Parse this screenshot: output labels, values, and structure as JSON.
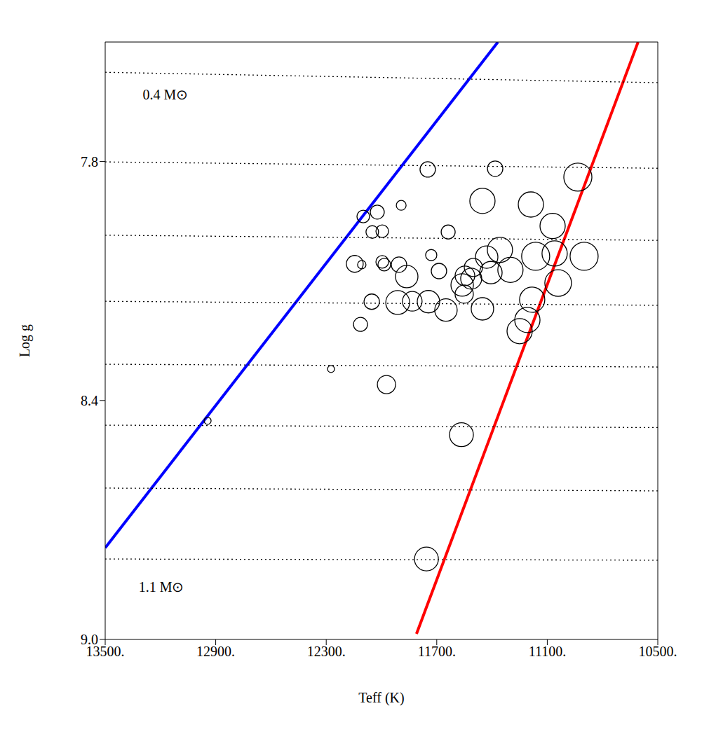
{
  "chart_data": {
    "type": "scatter",
    "x_label": "Teff (K)",
    "y_label": "Log g",
    "xlim": [
      13500,
      10500
    ],
    "ylim": [
      9.0,
      7.5
    ],
    "xticks": [
      {
        "value": 13500,
        "label": "13500."
      },
      {
        "value": 12900,
        "label": "12900."
      },
      {
        "value": 12300,
        "label": "12300."
      },
      {
        "value": 11700,
        "label": "11700."
      },
      {
        "value": 11100,
        "label": "11100."
      },
      {
        "value": 10500,
        "label": "10500."
      }
    ],
    "yticks": [
      7.8,
      8.4,
      {
        "value": 9,
        "label": "9.0"
      }
    ],
    "color": "#000000",
    "marker": "open_circle",
    "x": [
      12944,
      12274,
      11973,
      11749,
      11383,
      10934,
      12099,
      12023,
      11893,
      12050,
      11996,
      12145,
      12107,
      11996,
      11985,
      11905,
      12053,
      12114,
      11912,
      11833,
      11863,
      11745,
      11730,
      11688,
      11638,
      11650,
      11562,
      11547,
      11551,
      11513,
      11501,
      11452,
      11452,
      11429,
      11406,
      11357,
      11300,
      11189,
      11250,
      11208,
      11182,
      11163,
      11071,
      11060,
      11041,
      10900,
      11566,
      11756
    ],
    "y": [
      8.451,
      8.321,
      8.36,
      7.82,
      7.818,
      7.839,
      7.938,
      7.927,
      7.91,
      7.977,
      7.975,
      8.057,
      8.059,
      8.052,
      8.059,
      8.059,
      8.152,
      8.209,
      8.154,
      8.151,
      8.089,
      8.152,
      8.035,
      8.075,
      7.977,
      8.173,
      8.11,
      8.087,
      8.133,
      8.094,
      8.066,
      7.899,
      8.17,
      8.04,
      8.079,
      8.022,
      8.072,
      7.908,
      8.226,
      8.198,
      8.147,
      8.038,
      7.962,
      8.031,
      8.105,
      8.038,
      8.486,
      8.798
    ],
    "sizes": [
      5,
      5,
      13,
      11,
      11,
      20,
      9,
      10,
      7,
      9,
      9,
      12,
      6,
      9,
      9,
      11,
      11,
      10,
      17,
      14,
      16,
      16,
      8,
      11,
      10,
      16,
      16,
      14,
      13,
      15,
      13,
      18,
      16,
      16,
      16,
      18,
      18,
      18,
      18,
      18,
      18,
      20,
      18,
      18,
      19,
      20,
      17,
      17
    ],
    "lines": [
      {
        "color": "#0000ff",
        "line_style": "solid",
        "x": [
          13500,
          11368
        ],
        "y": [
          8.77,
          7.5
        ]
      },
      {
        "color": "#ff0000",
        "line_style": "solid",
        "x": [
          11810,
          10607
        ],
        "y": [
          8.986,
          7.5
        ]
      },
      {
        "color": "#000000",
        "line_style": "dotted",
        "x": [
          13500,
          10500
        ],
        "y": [
          7.576,
          7.602
        ]
      },
      {
        "color": "#000000",
        "line_style": "dotted",
        "x": [
          13500,
          10500
        ],
        "y": [
          7.801,
          7.817
        ]
      },
      {
        "color": "#000000",
        "line_style": "dotted",
        "x": [
          13500,
          10500
        ],
        "y": [
          7.985,
          7.998
        ]
      },
      {
        "color": "#000000",
        "line_style": "dotted",
        "x": [
          13500,
          10500
        ],
        "y": [
          8.151,
          8.161
        ]
      },
      {
        "color": "#000000",
        "line_style": "dotted",
        "x": [
          13500,
          10500
        ],
        "y": [
          8.309,
          8.316
        ]
      },
      {
        "color": "#000000",
        "line_style": "dotted",
        "x": [
          13500,
          10500
        ],
        "y": [
          8.462,
          8.468
        ]
      },
      {
        "color": "#000000",
        "line_style": "dotted",
        "x": [
          13500,
          10500
        ],
        "y": [
          8.62,
          8.627
        ]
      },
      {
        "color": "#000000",
        "line_style": "dotted",
        "x": [
          13500,
          10500
        ],
        "y": [
          8.798,
          8.801
        ]
      }
    ],
    "annotations": [
      {
        "text": "0.4 M⊙",
        "x": 13173,
        "y": 7.632
      },
      {
        "text": "1.1 M⊙",
        "x": 13195,
        "y": 8.868
      }
    ]
  }
}
